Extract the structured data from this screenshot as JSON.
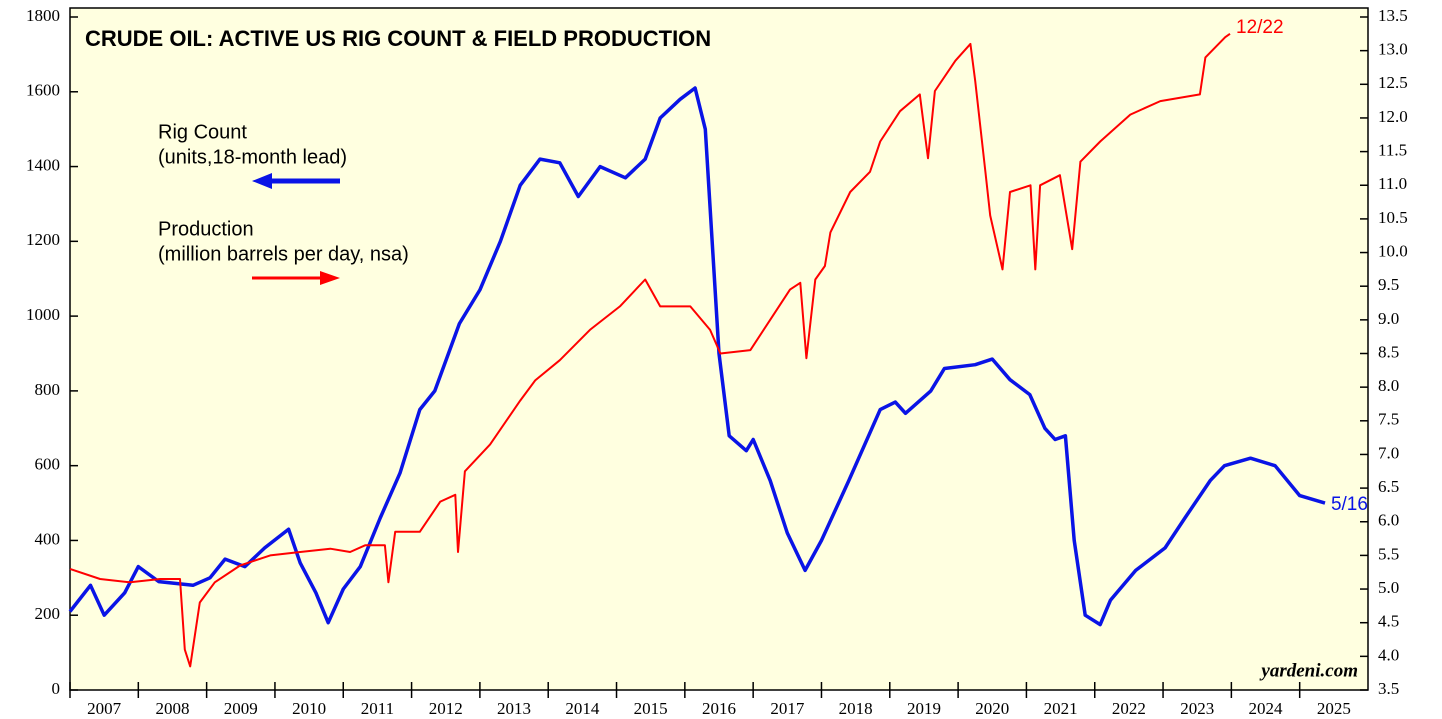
{
  "chart_data": {
    "type": "line",
    "title": "CRUDE OIL: ACTIVE US RIG COUNT & FIELD PRODUCTION",
    "source": "yardeni.com",
    "xlim": [
      2007,
      2026
    ],
    "xticks": [
      2007,
      2008,
      2009,
      2010,
      2011,
      2012,
      2013,
      2014,
      2015,
      2016,
      2017,
      2018,
      2019,
      2020,
      2021,
      2022,
      2023,
      2024,
      2025
    ],
    "ylim": [
      0,
      1800
    ],
    "yticks": [
      0,
      200,
      400,
      600,
      800,
      1000,
      1200,
      1400,
      1600,
      1800
    ],
    "y2lim": [
      3.5,
      13.5
    ],
    "y2ticks": [
      3.5,
      {
        "value": 4,
        "label": "4.0"
      },
      4.5,
      {
        "value": 5,
        "label": "5.0"
      },
      5.5,
      {
        "value": 6,
        "label": "6.0"
      },
      6.5,
      {
        "value": 7,
        "label": "7.0"
      },
      7.5,
      {
        "value": 8,
        "label": "8.0"
      },
      8.5,
      {
        "value": 9,
        "label": "9.0"
      },
      9.5,
      {
        "value": 10,
        "label": "10.0"
      },
      10.5,
      {
        "value": 11,
        "label": "11.0"
      },
      11.5,
      {
        "value": 12,
        "label": "12.0"
      },
      12.5,
      {
        "value": 13,
        "label": "13.0"
      },
      13.5
    ],
    "series": [
      {
        "name": "Rig Count",
        "note": "(units,18-month lead)",
        "end_label": "5/16",
        "color": "#0a14e6",
        "axis": "y",
        "x": [
          2007.0,
          2007.3,
          2007.5,
          2007.8,
          2008.0,
          2008.3,
          2008.8,
          2009.05,
          2009.27,
          2009.56,
          2009.85,
          2010.2,
          2010.37,
          2010.6,
          2010.78,
          2011.0,
          2011.25,
          2011.54,
          2011.83,
          2012.12,
          2012.34,
          2012.7,
          2013.0,
          2013.3,
          2013.59,
          2013.88,
          2014.17,
          2014.44,
          2014.76,
          2015.13,
          2015.42,
          2015.64,
          2015.93,
          2016.15,
          2016.3,
          2016.5,
          2016.65,
          2016.9,
          2017.0,
          2017.25,
          2017.5,
          2017.76,
          2018.0,
          2018.4,
          2018.86,
          2019.08,
          2019.23,
          2019.6,
          2019.8,
          2020.25,
          2020.5,
          2020.76,
          2021.05,
          2021.27,
          2021.42,
          2021.57,
          2021.7,
          2021.86,
          2022.08,
          2022.23,
          2022.6,
          2023.03,
          2023.32,
          2023.69,
          2023.9,
          2024.28,
          2024.64,
          2025.0,
          2025.37
        ],
        "values": [
          210,
          280,
          200,
          260,
          330,
          290,
          280,
          300,
          350,
          330,
          380,
          430,
          340,
          260,
          180,
          270,
          330,
          460,
          580,
          750,
          800,
          980,
          1070,
          1200,
          1350,
          1420,
          1410,
          1320,
          1400,
          1370,
          1420,
          1530,
          1580,
          1610,
          1500,
          900,
          680,
          640,
          670,
          560,
          420,
          320,
          400,
          560,
          750,
          770,
          740,
          800,
          860,
          870,
          885,
          830,
          790,
          700,
          670,
          680,
          400,
          200,
          175,
          240,
          320,
          380,
          460,
          560,
          600,
          620,
          600,
          520,
          500
        ]
      },
      {
        "name": "Production",
        "note": "(million barrels per day, nsa)",
        "end_label": "12/22",
        "color": "#ff0000",
        "axis": "y2",
        "x": [
          2007.0,
          2007.44,
          2007.88,
          2008.32,
          2008.61,
          2008.68,
          2008.76,
          2008.9,
          2009.12,
          2009.49,
          2009.93,
          2010.37,
          2010.81,
          2011.1,
          2011.32,
          2011.61,
          2011.66,
          2011.76,
          2012.12,
          2012.42,
          2012.64,
          2012.68,
          2012.78,
          2013.15,
          2013.59,
          2013.81,
          2014.17,
          2014.61,
          2015.05,
          2015.42,
          2015.64,
          2016.08,
          2016.37,
          2016.52,
          2016.96,
          2017.25,
          2017.54,
          2017.69,
          2017.78,
          2017.91,
          2018.05,
          2018.13,
          2018.42,
          2018.71,
          2018.86,
          2019.15,
          2019.44,
          2019.56,
          2019.66,
          2019.96,
          2020.18,
          2020.25,
          2020.4,
          2020.47,
          2020.65,
          2020.76,
          2021.06,
          2021.13,
          2021.2,
          2021.49,
          2021.67,
          2021.79,
          2022.08,
          2022.52,
          2022.96,
          2023.54,
          2023.62,
          2023.91,
          2023.98
        ],
        "values": [
          5.3,
          5.15,
          5.1,
          5.15,
          5.15,
          4.1,
          3.85,
          4.8,
          5.1,
          5.35,
          5.5,
          5.55,
          5.6,
          5.55,
          5.65,
          5.65,
          5.1,
          5.85,
          5.85,
          6.3,
          6.4,
          5.55,
          6.75,
          7.15,
          7.8,
          8.1,
          8.4,
          8.85,
          9.2,
          9.6,
          9.2,
          9.2,
          8.85,
          8.5,
          8.55,
          9.0,
          9.45,
          9.55,
          8.43,
          9.6,
          9.8,
          10.3,
          10.9,
          11.2,
          11.65,
          12.1,
          12.35,
          11.4,
          12.4,
          12.85,
          13.1,
          12.55,
          11.2,
          10.55,
          9.75,
          10.9,
          11.0,
          9.75,
          11.0,
          11.15,
          10.05,
          11.35,
          11.65,
          12.05,
          12.25,
          12.35,
          12.9,
          13.2,
          13.25
        ]
      }
    ]
  }
}
